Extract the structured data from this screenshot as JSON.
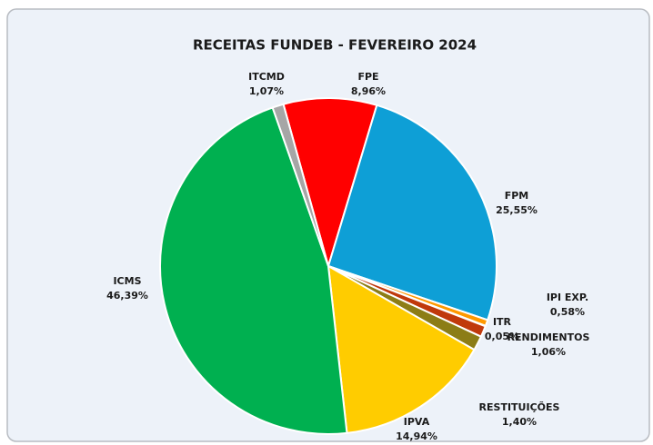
{
  "chart_data": {
    "type": "pie",
    "title": "RECEITAS FUNDEB - FEVEREIRO 2024",
    "categories": [
      "FPE",
      "FPM",
      "IPI EXP.",
      "ITR",
      "RENDIMENTOS",
      "RESTITUIÇÕES",
      "IPVA",
      "ICMS",
      "ITCMD"
    ],
    "values": [
      8.96,
      25.55,
      0.58,
      0.05,
      1.06,
      1.4,
      14.94,
      46.39,
      1.07
    ],
    "value_labels": [
      "8,96%",
      "25,55%",
      "0,58%",
      "0,05%",
      "1,06%",
      "1,40%",
      "14,94%",
      "46,39%",
      "1,07%"
    ],
    "colors": [
      "#ff0000",
      "#0e9fd6",
      "#ff9900",
      "#1f497d",
      "#c0390b",
      "#8c7d16",
      "#ffcc00",
      "#00b050",
      "#a6a6a6"
    ]
  }
}
